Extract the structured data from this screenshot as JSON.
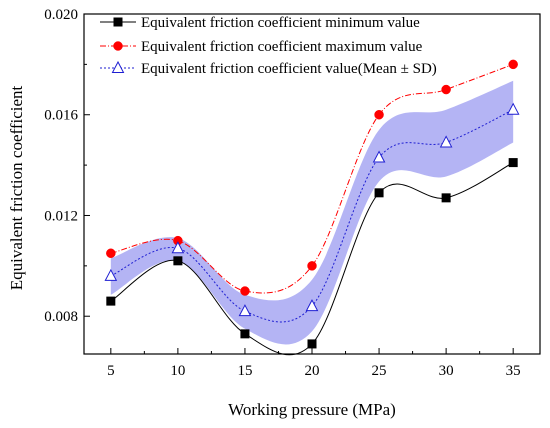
{
  "chart_data": {
    "type": "line",
    "title": "",
    "xlabel": "Working pressure (MPa)",
    "ylabel": "Equivalent friction coefficient",
    "x": [
      5,
      10,
      15,
      20,
      25,
      30,
      35
    ],
    "xticks": [
      "5",
      "10",
      "15",
      "20",
      "25",
      "30",
      "35"
    ],
    "yticks": [
      "0.008",
      "0.012",
      "0.016",
      "0.020"
    ],
    "xlim": [
      3,
      37
    ],
    "ylim": [
      0.0065,
      0.02
    ],
    "grid": false,
    "legend_position": "top-left",
    "series": [
      {
        "name": "Equivalent friction coefficient minimum value",
        "marker": "square",
        "color": "#000000",
        "line": "solid",
        "values": [
          0.0086,
          0.0102,
          0.0073,
          0.0069,
          0.0129,
          0.0127,
          0.0141
        ]
      },
      {
        "name": "Equivalent friction coefficient maximum value",
        "marker": "circle",
        "color": "#ff0000",
        "line": "dash-dot",
        "values": [
          0.0105,
          0.011,
          0.009,
          0.01,
          0.016,
          0.017,
          0.018
        ]
      },
      {
        "name": "Equivalent friction coefficient value(Mean ± SD)",
        "marker": "triangle",
        "color": "#1e1ed2",
        "line": "dotted",
        "values": [
          0.0096,
          0.0107,
          0.0082,
          0.0084,
          0.0143,
          0.0149,
          0.0162
        ],
        "band_color": "#9b9bf0"
      }
    ]
  }
}
